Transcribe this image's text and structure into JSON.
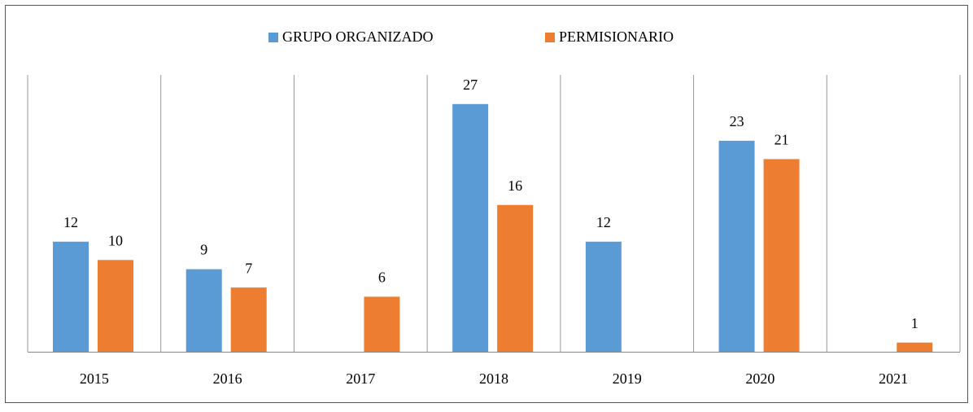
{
  "chart_data": {
    "type": "bar",
    "categories": [
      "2015",
      "2016",
      "2017",
      "2018",
      "2019",
      "2020",
      "2021"
    ],
    "series": [
      {
        "name": "GRUPO ORGANIZADO",
        "color": "#5b9bd5",
        "values": [
          12,
          9,
          null,
          27,
          12,
          23,
          null
        ]
      },
      {
        "name": "PERMISIONARIO",
        "color": "#ed7d31",
        "values": [
          10,
          7,
          6,
          16,
          null,
          21,
          1
        ]
      }
    ],
    "ylim": [
      0,
      30
    ],
    "legend": "top"
  }
}
